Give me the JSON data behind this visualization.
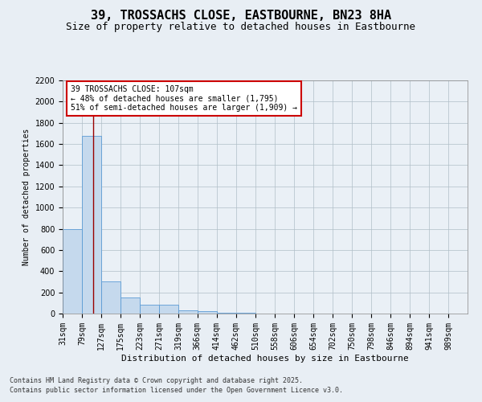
{
  "title": "39, TROSSACHS CLOSE, EASTBOURNE, BN23 8HA",
  "subtitle": "Size of property relative to detached houses in Eastbourne",
  "xlabel": "Distribution of detached houses by size in Eastbourne",
  "ylabel": "Number of detached properties",
  "footnote1": "Contains HM Land Registry data © Crown copyright and database right 2025.",
  "footnote2": "Contains public sector information licensed under the Open Government Licence v3.0.",
  "annotation_title": "39 TROSSACHS CLOSE: 107sqm",
  "annotation_line1": "← 48% of detached houses are smaller (1,795)",
  "annotation_line2": "51% of semi-detached houses are larger (1,909) →",
  "bar_color": "#c5d9ed",
  "bar_edge_color": "#5b9bd5",
  "vline_color": "#990000",
  "vline_x": 107,
  "categories": [
    "31sqm",
    "79sqm",
    "127sqm",
    "175sqm",
    "223sqm",
    "271sqm",
    "319sqm",
    "366sqm",
    "414sqm",
    "462sqm",
    "510sqm",
    "558sqm",
    "606sqm",
    "654sqm",
    "702sqm",
    "750sqm",
    "798sqm",
    "846sqm",
    "894sqm",
    "941sqm",
    "989sqm"
  ],
  "bin_starts": [
    31,
    79,
    127,
    175,
    223,
    271,
    319,
    366,
    414,
    462,
    510,
    558,
    606,
    654,
    702,
    750,
    798,
    846,
    894,
    941,
    989
  ],
  "bin_width": 48,
  "values": [
    800,
    1680,
    300,
    150,
    80,
    80,
    30,
    20,
    10,
    5,
    0,
    0,
    0,
    0,
    0,
    0,
    0,
    0,
    0,
    0,
    0
  ],
  "ylim": [
    0,
    2200
  ],
  "yticks": [
    0,
    200,
    400,
    600,
    800,
    1000,
    1200,
    1400,
    1600,
    1800,
    2000,
    2200
  ],
  "background_color": "#e8eef4",
  "plot_background": "#eaf0f6",
  "grid_color": "#b0bec8",
  "annotation_box_color": "#ffffff",
  "annotation_box_edge": "#cc0000",
  "title_fontsize": 11,
  "subtitle_fontsize": 9,
  "xlabel_fontsize": 8,
  "ylabel_fontsize": 7,
  "tick_fontsize": 7,
  "annotation_fontsize": 7,
  "footnote_fontsize": 6
}
